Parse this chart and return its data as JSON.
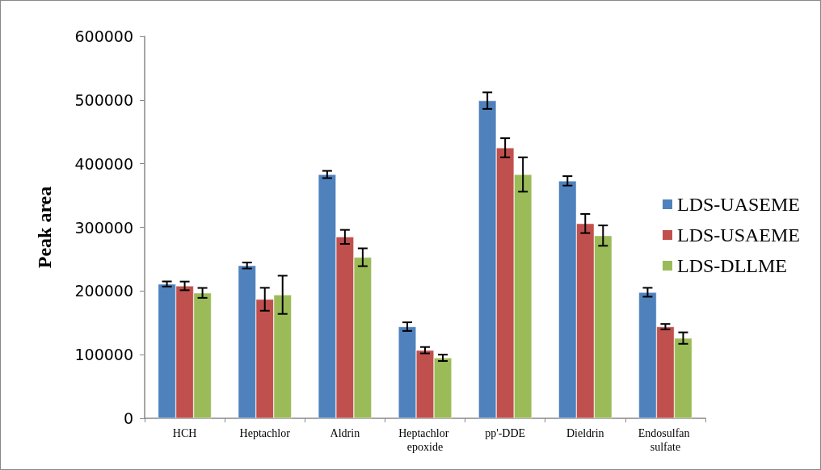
{
  "chart_data": {
    "type": "bar",
    "ylabel": "Peak area",
    "categories": [
      "HCH",
      "Heptachlor",
      "Aldrin",
      "Heptachlor epoxide",
      "pp'-DDE",
      "Dieldrin",
      "Endosulfan sulfate"
    ],
    "series": [
      {
        "name": "LDS-UASEME",
        "color": "#4f81bd",
        "values": [
          211000,
          240000,
          383000,
          144000,
          499000,
          373000,
          198000
        ],
        "errors": [
          4000,
          4700,
          5700,
          6800,
          13000,
          7400,
          7000
        ]
      },
      {
        "name": "LDS-USAEME",
        "color": "#c0504d",
        "values": [
          208000,
          187000,
          285000,
          107000,
          425000,
          306000,
          144000
        ],
        "errors": [
          6800,
          18000,
          11000,
          5000,
          15000,
          15000,
          4200
        ]
      },
      {
        "name": "LDS-DLLME",
        "color": "#9bbb59",
        "values": [
          197000,
          194000,
          253000,
          95000,
          383000,
          287000,
          126000
        ],
        "errors": [
          7800,
          30000,
          14000,
          5000,
          27000,
          16000,
          9000
        ]
      }
    ],
    "ylim": [
      0,
      600000
    ],
    "yticks": [
      0,
      100000,
      200000,
      300000,
      400000,
      500000,
      600000
    ],
    "grid": false,
    "legend": "right"
  }
}
